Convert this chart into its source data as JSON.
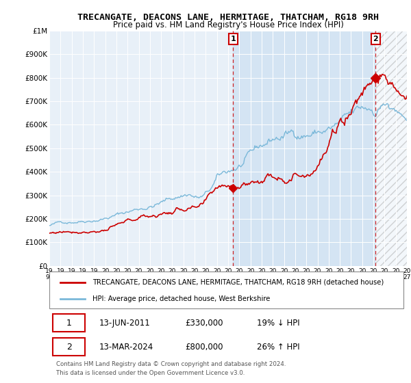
{
  "title": "TRECANGATE, DEACONS LANE, HERMITAGE, THATCHAM, RG18 9RH",
  "subtitle": "Price paid vs. HM Land Registry's House Price Index (HPI)",
  "legend_line1": "TRECANGATE, DEACONS LANE, HERMITAGE, THATCHAM, RG18 9RH (detached house)",
  "legend_line2": "HPI: Average price, detached house, West Berkshire",
  "annotation1_year": 2011.45,
  "annotation1_value": 330000,
  "annotation2_year": 2024.2,
  "annotation2_value": 800000,
  "ymax": 1000000,
  "ymin": 0,
  "xmin": 1995,
  "xmax": 2027,
  "yticks": [
    0,
    100000,
    200000,
    300000,
    400000,
    500000,
    600000,
    700000,
    800000,
    900000,
    1000000
  ],
  "ytick_labels": [
    "£0",
    "£100K",
    "£200K",
    "£300K",
    "£400K",
    "£500K",
    "£600K",
    "£700K",
    "£800K",
    "£900K",
    "£1M"
  ],
  "hpi_color": "#7ab8d9",
  "price_color": "#cc0000",
  "chart_bg": "#e8f0f8",
  "grid_color": "#ffffff",
  "span_color": "#c8dcf0",
  "hatch_area_color": "#d8d8d8",
  "row1": [
    "1",
    "13-JUN-2011",
    "£330,000",
    "19% ↓ HPI"
  ],
  "row2": [
    "2",
    "13-MAR-2024",
    "£800,000",
    "26% ↑ HPI"
  ],
  "footer": "Contains HM Land Registry data © Crown copyright and database right 2024.\nThis data is licensed under the Open Government Licence v3.0."
}
